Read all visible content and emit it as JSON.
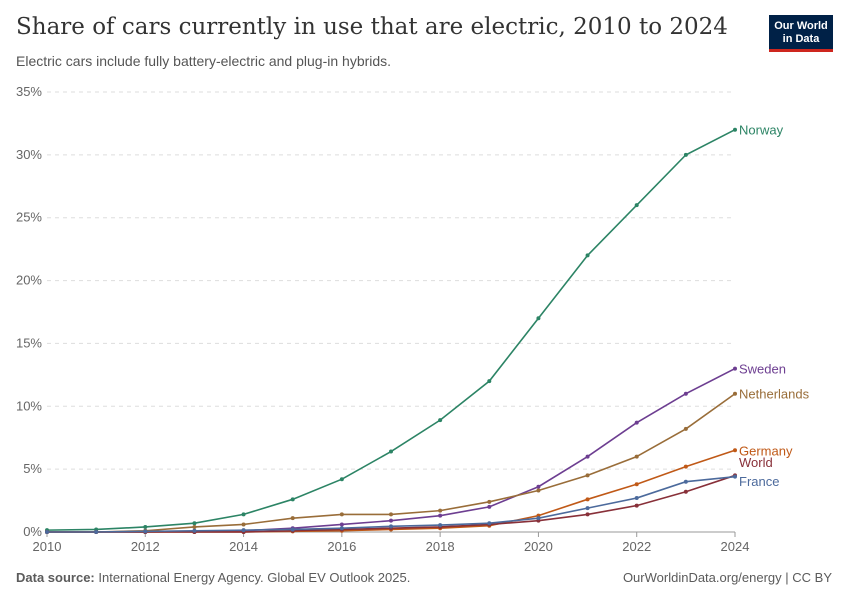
{
  "header": {
    "title": "Share of cars currently in use that are electric, 2010 to 2024",
    "subtitle": "Electric cars include fully battery-electric and plug-in hybrids.",
    "logo": "Our World in Data"
  },
  "footer": {
    "source_label": "Data source:",
    "source": "International Energy Agency. Global EV Outlook 2025.",
    "credit": "OurWorldinData.org/energy | CC BY"
  },
  "chart_data": {
    "type": "line",
    "title": "Share of cars currently in use that are electric, 2010 to 2024",
    "xlim": [
      2010,
      2024
    ],
    "ylim": [
      0,
      35
    ],
    "x_ticks": [
      "2010",
      "2012",
      "2014",
      "2016",
      "2018",
      "2020",
      "2022",
      "2024"
    ],
    "y_ticks": [
      "0%",
      "5%",
      "10%",
      "15%",
      "20%",
      "25%",
      "30%",
      "35%"
    ],
    "grid": "horizontal dashed",
    "legend": "inline labels at line ends",
    "x": [
      2010,
      2011,
      2012,
      2013,
      2014,
      2015,
      2016,
      2017,
      2018,
      2019,
      2020,
      2021,
      2022,
      2023,
      2024
    ],
    "series": [
      {
        "name": "Norway",
        "color": "#2c8465",
        "values": [
          0.15,
          0.2,
          0.4,
          0.7,
          1.4,
          2.6,
          4.2,
          6.4,
          8.9,
          12,
          17,
          22,
          26,
          30,
          32
        ]
      },
      {
        "name": "Sweden",
        "color": "#6d3e91",
        "values": [
          0,
          0,
          0,
          0.05,
          0.1,
          0.3,
          0.6,
          0.9,
          1.3,
          2.0,
          3.6,
          6.0,
          8.7,
          11,
          13
        ]
      },
      {
        "name": "Netherlands",
        "color": "#996d39",
        "values": [
          0,
          0,
          0.1,
          0.4,
          0.6,
          1.1,
          1.4,
          1.4,
          1.7,
          2.4,
          3.3,
          4.5,
          6.0,
          8.2,
          11
        ]
      },
      {
        "name": "Germany",
        "color": "#c05917",
        "values": [
          0,
          0,
          0,
          0,
          0,
          0.05,
          0.1,
          0.2,
          0.3,
          0.5,
          1.3,
          2.6,
          3.8,
          5.2,
          6.5
        ]
      },
      {
        "name": "World",
        "color": "#883039",
        "values": [
          0,
          0,
          0,
          0,
          0,
          0.1,
          0.2,
          0.3,
          0.4,
          0.6,
          0.9,
          1.4,
          2.1,
          3.2,
          4.5
        ]
      },
      {
        "name": "France",
        "color": "#4c6a9c",
        "values": [
          0,
          0,
          0.05,
          0.1,
          0.15,
          0.2,
          0.3,
          0.45,
          0.55,
          0.7,
          1.1,
          1.9,
          2.7,
          4.0,
          4.4
        ]
      }
    ]
  }
}
